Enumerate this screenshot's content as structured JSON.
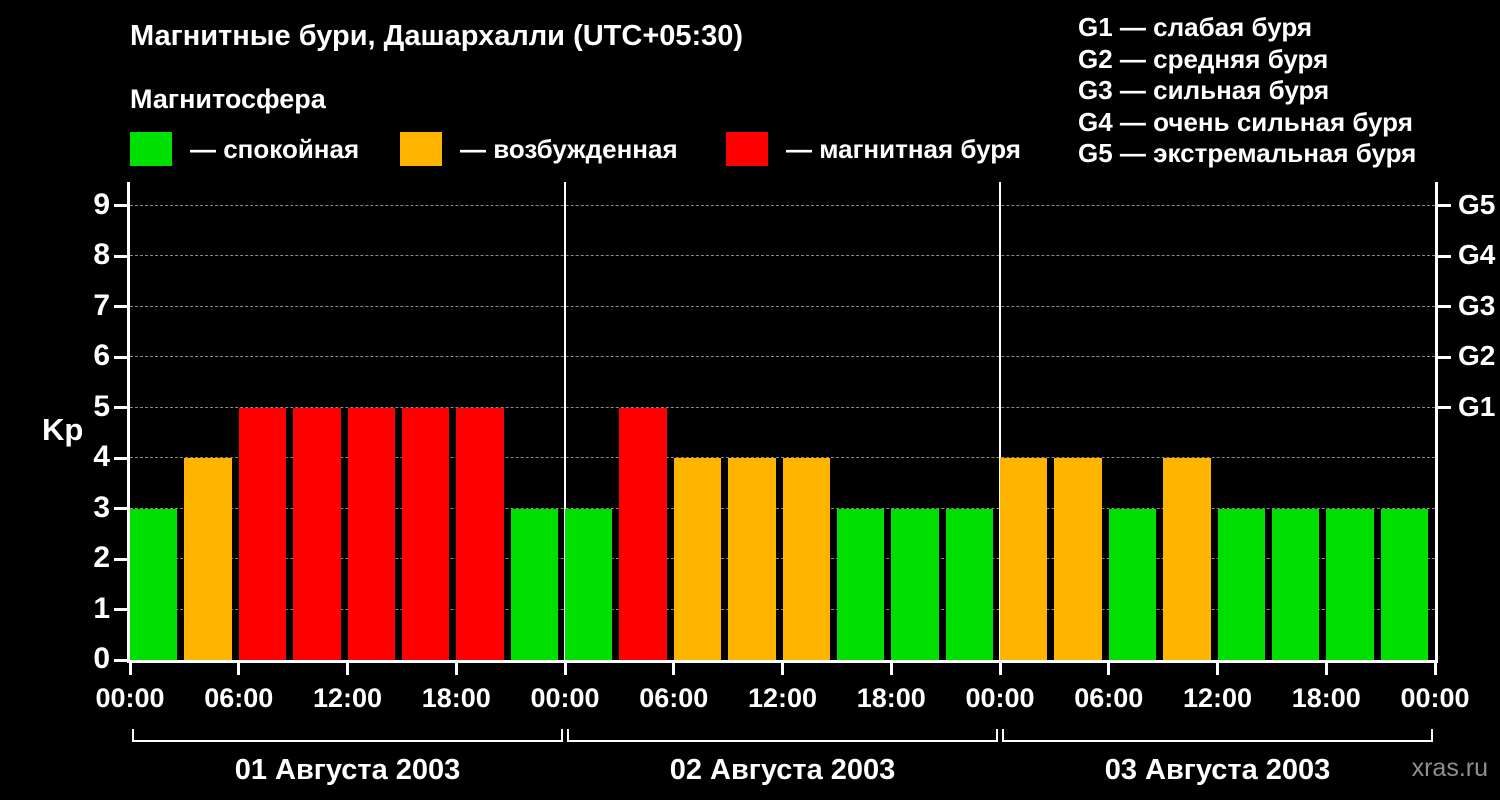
{
  "title": "Магнитные бури, Дашархалли (UTC+05:30)",
  "legend": {
    "heading": "Магнитосфера",
    "items": [
      {
        "name": "quiet",
        "label": "— спокойная",
        "color": "#00e000"
      },
      {
        "name": "active",
        "label": "— возбужденная",
        "color": "#ffb400"
      },
      {
        "name": "storm",
        "label": "— магнитная буря",
        "color": "#ff0000"
      }
    ]
  },
  "storm_scale": [
    "G1 — слабая буря",
    "G2 — средняя буря",
    "G3 — сильная буря",
    "G4 — очень сильная буря",
    "G5 — экстремальная буря"
  ],
  "watermark": "xras.ru",
  "chart_data": {
    "type": "bar",
    "title": "Магнитные бури, Дашархалли (UTC+05:30)",
    "ylabel": "Kp",
    "ylim": [
      0,
      9.5
    ],
    "yticks": [
      0,
      1,
      2,
      3,
      4,
      5,
      6,
      7,
      8,
      9
    ],
    "grid": "dashed-horizontal",
    "bar_interval_hours": 3,
    "x_tick_labels": [
      "00:00",
      "06:00",
      "12:00",
      "18:00",
      "00:00",
      "06:00",
      "12:00",
      "18:00",
      "00:00",
      "06:00",
      "12:00",
      "18:00",
      "00:00"
    ],
    "right_axis_ticks": [
      {
        "value": 5,
        "label": "G1"
      },
      {
        "value": 6,
        "label": "G2"
      },
      {
        "value": 7,
        "label": "G3"
      },
      {
        "value": 8,
        "label": "G4"
      },
      {
        "value": 9,
        "label": "G5"
      }
    ],
    "color_rules": {
      "quiet_max_kp": 3,
      "active_kp": 4,
      "storm_min_kp": 5
    },
    "colors": {
      "quiet": "#00e000",
      "active": "#ffb400",
      "storm": "#ff0000"
    },
    "days": [
      {
        "date": "01 Августа 2003",
        "kp": [
          3,
          4,
          5,
          5,
          5,
          5,
          5,
          3
        ],
        "levels": [
          "quiet",
          "active",
          "storm",
          "storm",
          "storm",
          "storm",
          "storm",
          "quiet"
        ]
      },
      {
        "date": "02 Августа 2003",
        "kp": [
          3,
          5,
          4,
          4,
          4,
          3,
          3,
          3
        ],
        "levels": [
          "quiet",
          "storm",
          "active",
          "active",
          "active",
          "quiet",
          "quiet",
          "quiet"
        ]
      },
      {
        "date": "03 Августа 2003",
        "kp": [
          4,
          4,
          3,
          4,
          3,
          3,
          3,
          3
        ],
        "levels": [
          "active",
          "active",
          "quiet",
          "active",
          "quiet",
          "quiet",
          "quiet",
          "quiet"
        ]
      }
    ]
  }
}
